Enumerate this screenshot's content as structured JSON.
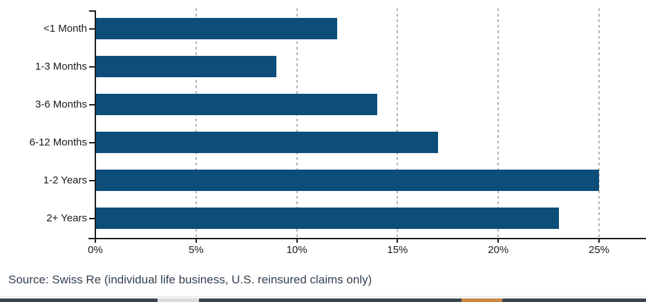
{
  "chart_data": {
    "type": "bar",
    "orientation": "horizontal",
    "title": "",
    "categories": [
      "<1 Month",
      "1-3 Months",
      "3-6 Months",
      "6-12 Months",
      "1-2 Years",
      "2+ Years"
    ],
    "values": [
      12,
      9,
      14,
      17,
      25,
      23
    ],
    "unit": "%",
    "xlabel": "",
    "ylabel": "",
    "x_tick_values": [
      0,
      5,
      10,
      15,
      20,
      25
    ],
    "x_tick_labels": [
      "0%",
      "5%",
      "10%",
      "15%",
      "20%",
      "25%"
    ],
    "xlim": [
      0,
      27.3
    ],
    "grid": "vertical-dashed",
    "legend": "none",
    "colors": {
      "bar": "#0d4d7a",
      "grid": "#b3b3b3",
      "axis": "#1a1a1a",
      "tick_label": "#1a1a1a"
    }
  },
  "footer": {
    "source_text": "Source: Swiss Re (individual life business, U.S. reinsured claims only)"
  },
  "bottom_strip": {
    "colors": {
      "band": "#f0f0f0",
      "bar": "#39424c",
      "light_segment": "#dcdcdc",
      "orange_segment": "#c9873f"
    }
  }
}
